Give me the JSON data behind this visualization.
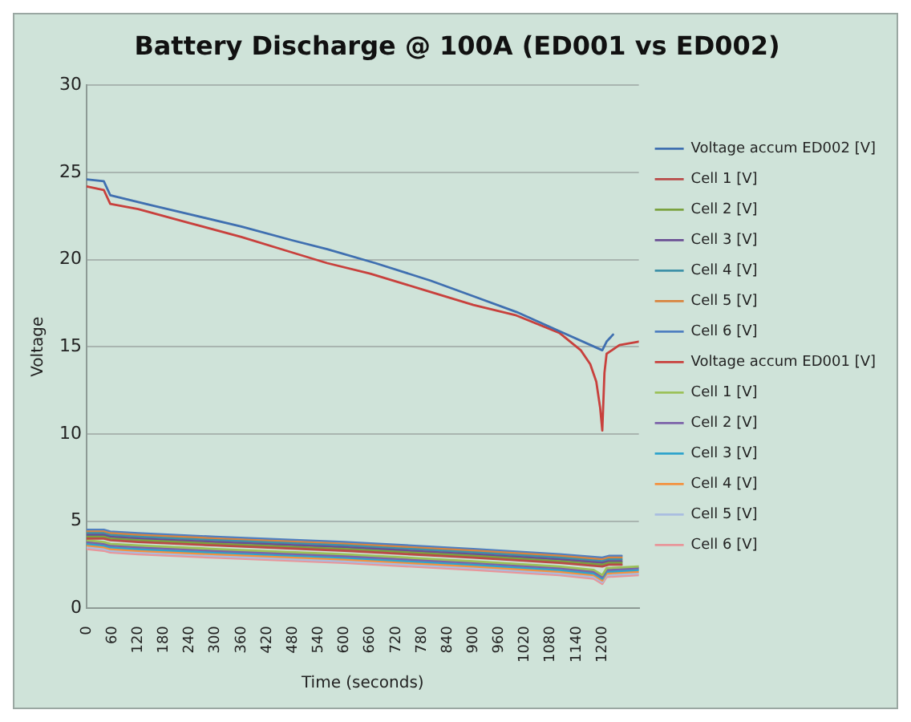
{
  "chart_data": {
    "type": "line",
    "title": "Battery Discharge @ 100A (ED001 vs ED002)",
    "xlabel": "Time (seconds)",
    "ylabel": "Voltage",
    "xlim": [
      0,
      1285
    ],
    "xticks": [
      0,
      60,
      120,
      180,
      240,
      300,
      360,
      420,
      480,
      540,
      600,
      660,
      720,
      780,
      840,
      900,
      960,
      1020,
      1080,
      1140,
      1200
    ],
    "ylim": [
      0,
      30
    ],
    "yticks": [
      0,
      5,
      10,
      15,
      20,
      25,
      30
    ],
    "grid": "y",
    "legend": "right",
    "marker": "none",
    "line_style": "solid",
    "series": [
      {
        "name": "Voltage accum ED002 [V]",
        "color": "#3f6fb0",
        "x": [
          0,
          40,
          55,
          120,
          240,
          360,
          480,
          560,
          672,
          800,
          900,
          1000,
          1100,
          1200,
          1210,
          1225
        ],
        "values": [
          24.6,
          24.5,
          23.7,
          23.3,
          22.6,
          21.9,
          21.1,
          20.6,
          19.8,
          18.8,
          17.9,
          17,
          15.9,
          14.8,
          15.3,
          15.7
        ]
      },
      {
        "name": "Cell 1 [V]",
        "color": "#b94a48",
        "x": [
          0,
          40,
          55,
          120,
          300,
          600,
          900,
          1100,
          1200,
          1215,
          1245
        ],
        "values": [
          4,
          4,
          3.9,
          3.8,
          3.6,
          3.3,
          2.9,
          2.6,
          2.4,
          2.5,
          2.5
        ]
      },
      {
        "name": "Cell 2 [V]",
        "color": "#7ba23f",
        "x": [
          0,
          40,
          55,
          120,
          300,
          600,
          900,
          1100,
          1200,
          1215,
          1245
        ],
        "values": [
          4.1,
          4.1,
          4,
          3.9,
          3.7,
          3.4,
          3,
          2.7,
          2.5,
          2.6,
          2.6
        ]
      },
      {
        "name": "Cell 3 [V]",
        "color": "#6a4f94",
        "x": [
          0,
          40,
          55,
          120,
          300,
          600,
          900,
          1100,
          1200,
          1215,
          1245
        ],
        "values": [
          4.2,
          4.2,
          4.1,
          4,
          3.8,
          3.5,
          3.1,
          2.8,
          2.6,
          2.7,
          2.7
        ]
      },
      {
        "name": "Cell 4 [V]",
        "color": "#3e91a8",
        "x": [
          0,
          40,
          55,
          120,
          300,
          600,
          900,
          1100,
          1200,
          1215,
          1245
        ],
        "values": [
          4.3,
          4.3,
          4.2,
          4.1,
          3.9,
          3.6,
          3.2,
          2.9,
          2.7,
          2.8,
          2.8
        ]
      },
      {
        "name": "Cell 5 [V]",
        "color": "#d9843e",
        "x": [
          0,
          40,
          55,
          120,
          300,
          600,
          900,
          1100,
          1200,
          1215,
          1245
        ],
        "values": [
          4.4,
          4.4,
          4.3,
          4.2,
          4,
          3.7,
          3.3,
          3,
          2.8,
          2.9,
          2.9
        ]
      },
      {
        "name": "Cell 6 [V]",
        "color": "#4f7fc0",
        "x": [
          0,
          40,
          55,
          120,
          300,
          600,
          900,
          1100,
          1200,
          1215,
          1245
        ],
        "values": [
          4.5,
          4.5,
          4.4,
          4.3,
          4.1,
          3.8,
          3.4,
          3.1,
          2.9,
          3,
          3
        ]
      },
      {
        "name": "Voltage accum ED001 [V]",
        "color": "#c8403c",
        "x": [
          0,
          40,
          55,
          120,
          240,
          360,
          480,
          560,
          660,
          780,
          900,
          1000,
          1100,
          1150,
          1172,
          1186,
          1195,
          1200,
          1205,
          1210,
          1240,
          1285
        ],
        "values": [
          24.2,
          24,
          23.2,
          22.9,
          22.1,
          21.3,
          20.4,
          19.8,
          19.2,
          18.3,
          17.4,
          16.8,
          15.8,
          14.8,
          14,
          13,
          11.5,
          10.2,
          13.5,
          14.6,
          15.1,
          15.3
        ]
      },
      {
        "name": "Cell 1 [V]",
        "color": "#9cc15a",
        "x": [
          0,
          40,
          55,
          120,
          300,
          600,
          900,
          1100,
          1180,
          1200,
          1210,
          1285
        ],
        "values": [
          3.9,
          3.8,
          3.7,
          3.6,
          3.4,
          3.1,
          2.7,
          2.4,
          2.2,
          1.9,
          2.3,
          2.4
        ]
      },
      {
        "name": "Cell 2 [V]",
        "color": "#7c62a8",
        "x": [
          0,
          40,
          55,
          120,
          300,
          600,
          900,
          1100,
          1180,
          1200,
          1210,
          1285
        ],
        "values": [
          3.8,
          3.7,
          3.6,
          3.5,
          3.3,
          3,
          2.6,
          2.3,
          2.1,
          1.8,
          2.2,
          2.3
        ]
      },
      {
        "name": "Cell 3 [V]",
        "color": "#2fa3cc",
        "x": [
          0,
          40,
          55,
          120,
          300,
          600,
          900,
          1100,
          1180,
          1200,
          1210,
          1285
        ],
        "values": [
          3.7,
          3.6,
          3.5,
          3.4,
          3.2,
          2.9,
          2.5,
          2.2,
          2,
          1.7,
          2.1,
          2.2
        ]
      },
      {
        "name": "Cell 4 [V]",
        "color": "#f3923e",
        "x": [
          0,
          40,
          55,
          120,
          300,
          600,
          900,
          1100,
          1180,
          1200,
          1210,
          1285
        ],
        "values": [
          3.6,
          3.5,
          3.4,
          3.3,
          3.1,
          2.8,
          2.4,
          2.1,
          1.9,
          1.6,
          2,
          2.1
        ]
      },
      {
        "name": "Cell 5 [V]",
        "color": "#a9bde0",
        "x": [
          0,
          40,
          55,
          120,
          300,
          600,
          900,
          1100,
          1180,
          1200,
          1210,
          1285
        ],
        "values": [
          3.5,
          3.4,
          3.3,
          3.2,
          3,
          2.7,
          2.3,
          2,
          1.8,
          1.5,
          1.9,
          2
        ]
      },
      {
        "name": "Cell 6 [V]",
        "color": "#e8969a",
        "x": [
          0,
          40,
          55,
          120,
          300,
          600,
          900,
          1100,
          1180,
          1200,
          1210,
          1285
        ],
        "values": [
          3.4,
          3.3,
          3.2,
          3.1,
          2.9,
          2.6,
          2.2,
          1.9,
          1.7,
          1.4,
          1.8,
          1.9
        ]
      }
    ]
  }
}
